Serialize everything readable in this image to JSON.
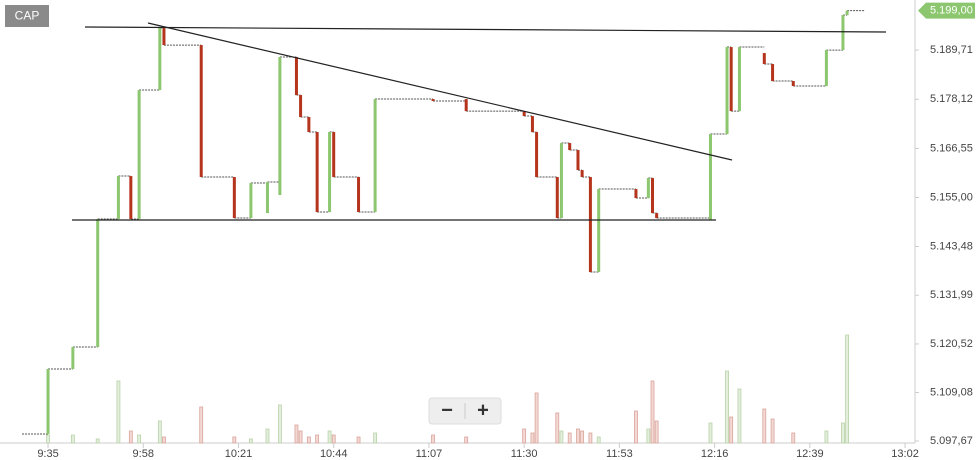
{
  "chart_data": {
    "type": "step",
    "symbol": "CAP",
    "x": [
      575,
      581,
      587,
      592,
      595,
      597,
      602,
      603,
      612,
      620,
      624,
      628,
      631,
      635,
      636,
      638,
      640,
      643,
      644,
      650,
      654,
      668,
      676,
      690,
      692,
      693,
      698,
      699,
      701,
      703,
      704,
      706,
      708,
      717,
      720,
      721,
      722,
      735,
      739,
      740,
      742,
      748,
      750,
      755,
      763,
      767,
      768
    ],
    "open": [
      5099.32,
      5114.62,
      5119.8,
      5149.93,
      5160.05,
      5149.93,
      5180.3,
      5194.89,
      5190.89,
      5159.82,
      5150.17,
      5151.34,
      5155.58,
      5188.07,
      5179.12,
      5173.94,
      5170.41,
      5151.58,
      5170.41,
      5159.82,
      5151.58,
      5178.18,
      5178.18,
      5175.35,
      5174.18,
      5170.41,
      5159.82,
      5150.17,
      5167.82,
      5166.17,
      5161.46,
      5159.82,
      5137.45,
      5156.99,
      5154.87,
      5159.58,
      5151.34,
      5149.69,
      5169.94,
      5190.42,
      5175.35,
      5189.01,
      5186.42,
      5182.42,
      5181.24,
      5189.71,
      5197.95
    ],
    "close": [
      5114.62,
      5119.8,
      5149.93,
      5160.05,
      5149.93,
      5180.3,
      5194.89,
      5190.89,
      5159.82,
      5150.17,
      5158.4,
      5158.64,
      5188.07,
      5179.12,
      5173.94,
      5170.41,
      5151.58,
      5170.41,
      5159.82,
      5151.58,
      5178.18,
      5177.71,
      5175.35,
      5174.18,
      5170.41,
      5159.82,
      5150.17,
      5167.82,
      5166.17,
      5161.46,
      5159.82,
      5137.45,
      5156.99,
      5154.87,
      5159.58,
      5151.34,
      5150.17,
      5169.94,
      5190.42,
      5175.35,
      5190.42,
      5186.42,
      5182.42,
      5181.24,
      5189.71,
      5197.95,
      5199.0
    ],
    "volume": [
      8,
      8,
      4,
      62,
      12,
      8,
      22,
      6,
      36,
      6,
      4,
      14,
      38,
      18,
      12,
      6,
      8,
      12,
      8,
      6,
      10,
      8,
      6,
      14,
      10,
      50,
      30,
      12,
      10,
      14,
      12,
      10,
      6,
      32,
      14,
      62,
      22,
      20,
      72,
      26,
      54,
      34,
      24,
      10,
      12,
      20,
      108
    ],
    "up_color": "#8cc66e",
    "down_color": "#b5341c",
    "xlim": [
      563.4,
      784.4
    ],
    "ylim": [
      5097.2,
      5201.5
    ],
    "xticks": [
      {
        "value": 575,
        "label": "9:35"
      },
      {
        "value": 598,
        "label": "9:58"
      },
      {
        "value": 621,
        "label": "10:21"
      },
      {
        "value": 644,
        "label": "10:44"
      },
      {
        "value": 667,
        "label": "11:07"
      },
      {
        "value": 690,
        "label": "11:30"
      },
      {
        "value": 713,
        "label": "11:53"
      },
      {
        "value": 736,
        "label": "12:16"
      },
      {
        "value": 759,
        "label": "12:39"
      },
      {
        "value": 782,
        "label": "13:02"
      }
    ],
    "yticks": [
      {
        "value": 5189.71,
        "label": "5.189,71"
      },
      {
        "value": 5178.12,
        "label": "5.178,12"
      },
      {
        "value": 5166.55,
        "label": "5.166,55"
      },
      {
        "value": 5155.0,
        "label": "5.155,00"
      },
      {
        "value": 5143.48,
        "label": "5.143,48"
      },
      {
        "value": 5131.99,
        "label": "5.131,99"
      },
      {
        "value": 5120.52,
        "label": "5.120,52"
      },
      {
        "value": 5109.08,
        "label": "5.109,08"
      },
      {
        "value": 5097.67,
        "label": "5.097,67"
      }
    ],
    "last_price": {
      "value": 5199.0,
      "label": "5.199,00"
    }
  },
  "zoom_controls": {
    "zoom_out": "−",
    "zoom_in": "+"
  }
}
